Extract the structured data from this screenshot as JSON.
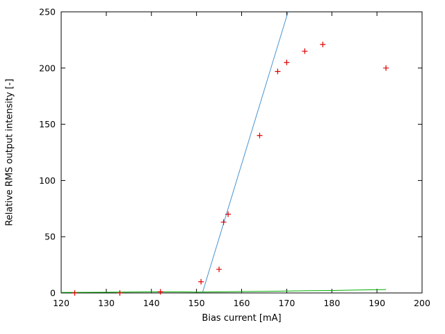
{
  "chart_data": {
    "type": "scatter",
    "title": "",
    "xlabel": "Bias current [mA]",
    "ylabel": "Relative RMS output intensity [-]",
    "xlim": [
      120,
      200
    ],
    "ylim": [
      0,
      250
    ],
    "xticks": [
      120,
      130,
      140,
      150,
      160,
      170,
      180,
      190,
      200
    ],
    "yticks": [
      0,
      50,
      100,
      150,
      200,
      250
    ],
    "grid": false,
    "legend": "none",
    "series": [
      {
        "name": "measured-points",
        "type": "points",
        "marker": "plus",
        "color": "#e00000",
        "points": [
          [
            123,
            0
          ],
          [
            133,
            0
          ],
          [
            142,
            1
          ],
          [
            151,
            10
          ],
          [
            155,
            21
          ],
          [
            156,
            63
          ],
          [
            157,
            70
          ],
          [
            164,
            140
          ],
          [
            168,
            197
          ],
          [
            170,
            205
          ],
          [
            174,
            215
          ],
          [
            178,
            221
          ],
          [
            192,
            200
          ]
        ]
      },
      {
        "name": "linear-fit",
        "type": "line",
        "color": "#4894d0",
        "points": [
          [
            151.3,
            0
          ],
          [
            170.3,
            250
          ]
        ]
      },
      {
        "name": "baseline",
        "type": "line",
        "color": "#00b000",
        "points": [
          [
            120,
            0.5
          ],
          [
            130,
            0.6
          ],
          [
            140,
            1
          ],
          [
            146,
            1
          ],
          [
            150,
            0.8
          ],
          [
            156,
            1
          ],
          [
            160,
            1.2
          ],
          [
            165,
            1.4
          ],
          [
            170,
            1.7
          ],
          [
            175,
            2
          ],
          [
            180,
            2.2
          ],
          [
            186,
            2.6
          ],
          [
            192,
            3
          ]
        ]
      }
    ]
  },
  "layout_colors": {
    "background": "#ffffff",
    "axis": "#000000"
  }
}
